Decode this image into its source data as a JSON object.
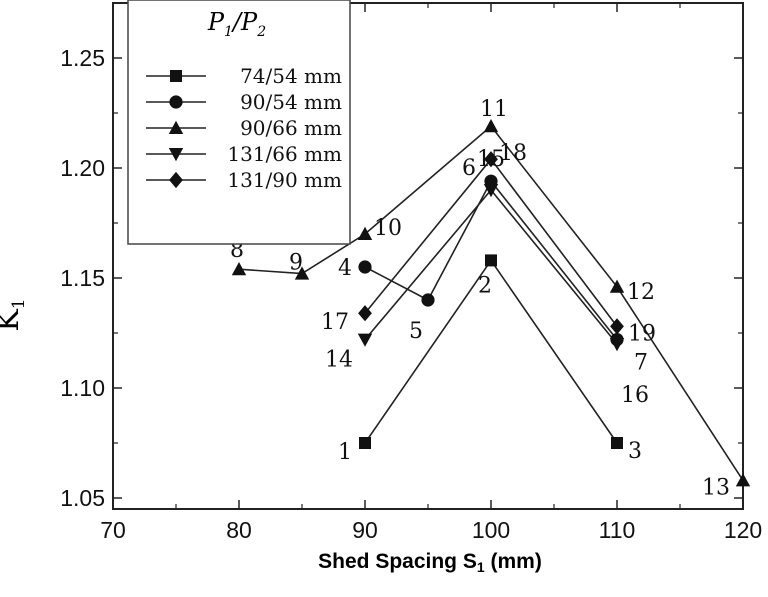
{
  "chart_data": {
    "type": "line",
    "title": "",
    "xlabel_main": "Shed Spacing S",
    "xlabel_sub": "1",
    "xlabel_unit": " (mm)",
    "ylabel_main": "K",
    "ylabel_sub": "1",
    "xlim": [
      70,
      120
    ],
    "ylim": [
      1.045,
      1.275
    ],
    "xticks": [
      70,
      80,
      90,
      100,
      110,
      120
    ],
    "xtick_labels": [
      "70",
      "80",
      "90",
      "100",
      "110",
      "120"
    ],
    "yticks": [
      1.05,
      1.1,
      1.15,
      1.2,
      1.25
    ],
    "ytick_labels": [
      "1.05",
      "1.10",
      "1.15",
      "1.20",
      "1.25"
    ],
    "legend_title": "P1/P2",
    "legend_placement": "top-left",
    "grid": false,
    "series": [
      {
        "name": "74/54 mm",
        "marker": "square",
        "points": [
          {
            "x": 90,
            "y": 1.075,
            "label": "1"
          },
          {
            "x": 100,
            "y": 1.158,
            "label": "2"
          },
          {
            "x": 110,
            "y": 1.075,
            "label": "3"
          }
        ]
      },
      {
        "name": "90/54 mm",
        "marker": "circle",
        "points": [
          {
            "x": 90,
            "y": 1.155,
            "label": "4"
          },
          {
            "x": 95,
            "y": 1.14,
            "label": "5"
          },
          {
            "x": 100,
            "y": 1.194,
            "label": "6"
          },
          {
            "x": 110,
            "y": 1.122,
            "label": "7"
          }
        ]
      },
      {
        "name": "90/66 mm",
        "marker": "triangle-up",
        "points": [
          {
            "x": 80,
            "y": 1.154,
            "label": "8"
          },
          {
            "x": 85,
            "y": 1.152,
            "label": "9"
          },
          {
            "x": 90,
            "y": 1.17,
            "label": "10"
          },
          {
            "x": 100,
            "y": 1.219,
            "label": "11"
          },
          {
            "x": 110,
            "y": 1.146,
            "label": "12"
          },
          {
            "x": 120,
            "y": 1.058,
            "label": "13"
          }
        ]
      },
      {
        "name": "131/66 mm",
        "marker": "triangle-down",
        "points": [
          {
            "x": 90,
            "y": 1.122,
            "label": "14"
          },
          {
            "x": 100,
            "y": 1.19,
            "label": "15"
          },
          {
            "x": 110,
            "y": 1.12,
            "label": "16"
          }
        ]
      },
      {
        "name": "131/90 mm",
        "marker": "diamond",
        "points": [
          {
            "x": 90,
            "y": 1.134,
            "label": "17"
          },
          {
            "x": 100,
            "y": 1.204,
            "label": "18"
          },
          {
            "x": 110,
            "y": 1.128,
            "label": "19"
          }
        ]
      }
    ]
  }
}
